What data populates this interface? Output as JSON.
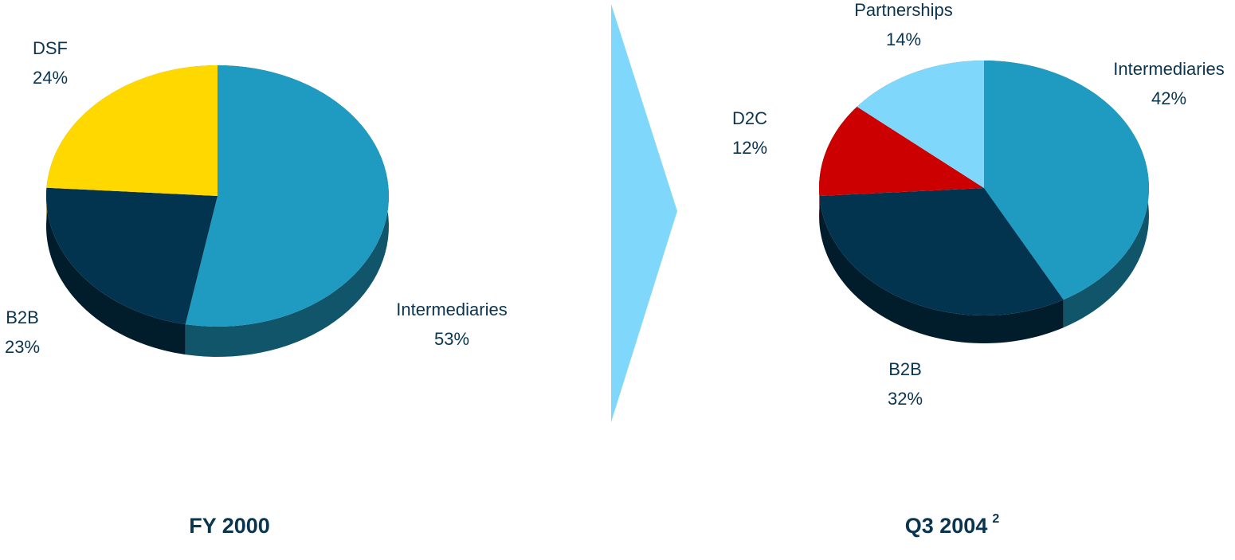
{
  "chart_data": [
    {
      "type": "pie",
      "title": "FY 2000",
      "categories": [
        "Intermediaries",
        "B2B",
        "DSF"
      ],
      "values": [
        53,
        23,
        24
      ],
      "value_labels": [
        "53%",
        "23%",
        "24%"
      ],
      "colors": [
        "#1f9bc2",
        "#02344f",
        "#ffd800"
      ]
    },
    {
      "type": "pie",
      "title": "Q3 2004",
      "title_footnote": "2",
      "categories": [
        "Intermediaries",
        "B2B",
        "D2C",
        "Partnerships"
      ],
      "values": [
        42,
        32,
        12,
        14
      ],
      "value_labels": [
        "42%",
        "32%",
        "12%",
        "14%"
      ],
      "colors": [
        "#1f9bc2",
        "#02344f",
        "#cc0000",
        "#7fd8fc"
      ]
    }
  ]
}
